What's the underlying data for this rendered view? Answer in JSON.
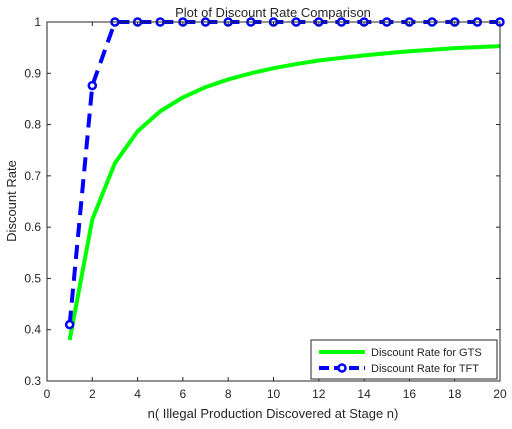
{
  "chart_data": {
    "type": "line",
    "title": "Plot of Discount Rate Comparison",
    "xlabel": "n( Illegal Production Discovered at Stage n)",
    "ylabel": "Discount Rate",
    "xlim": [
      0,
      20
    ],
    "ylim": [
      0.3,
      1.0
    ],
    "xticks": [
      0,
      2,
      4,
      6,
      8,
      10,
      12,
      14,
      16,
      18,
      20
    ],
    "yticks": [
      0.3,
      0.4,
      0.5,
      0.6,
      0.7,
      0.8,
      0.9,
      1
    ],
    "grid": false,
    "legend_position": "bottom-right",
    "series": [
      {
        "name": "Discount Rate for GTS",
        "color": "#00ff00",
        "style": "solid",
        "marker": "none",
        "x": [
          1,
          2,
          3,
          4,
          5,
          6,
          7,
          8,
          9,
          10,
          11,
          12,
          13,
          14,
          15,
          16,
          17,
          18,
          19,
          20
        ],
        "y": [
          0.38,
          0.615,
          0.725,
          0.787,
          0.826,
          0.853,
          0.873,
          0.888,
          0.9,
          0.91,
          0.918,
          0.925,
          0.93,
          0.935,
          0.939,
          0.943,
          0.946,
          0.949,
          0.951,
          0.953
        ]
      },
      {
        "name": "Discount Rate for TFT",
        "color": "#0000ff",
        "style": "dashed",
        "marker": "circle",
        "x": [
          1,
          2,
          3,
          4,
          5,
          6,
          7,
          8,
          9,
          10,
          11,
          12,
          13,
          14,
          15,
          16,
          17,
          18,
          19,
          20
        ],
        "y": [
          0.41,
          0.876,
          1.0,
          1.0,
          1.0,
          1.0,
          1.0,
          1.0,
          1.0,
          1.0,
          1.0,
          1.0,
          1.0,
          1.0,
          1.0,
          1.0,
          1.0,
          1.0,
          1.0,
          1.0
        ]
      }
    ]
  }
}
